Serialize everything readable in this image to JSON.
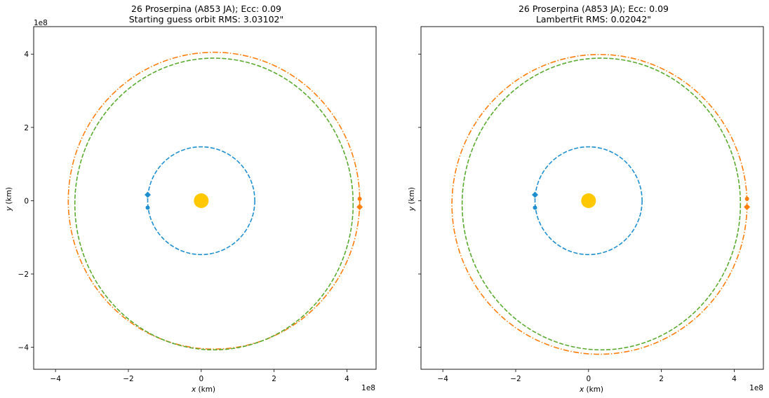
{
  "chart_data": [
    {
      "type": "scatter",
      "title_line1": "26 Proserpina (A853 JA); Ecc: 0.09",
      "title_line2": "Starting guess orbit RMS: 3.03102\"",
      "xlabel_var": "x",
      "xlabel_unit": " (km)",
      "ylabel_var": "y",
      "ylabel_unit": " (km)",
      "x_offset_text": "1e8",
      "y_offset_text": "1e8",
      "xlim": [
        -4.6,
        4.8
      ],
      "ylim": [
        -4.6,
        4.75
      ],
      "xticks": [
        -4,
        -2,
        0,
        2,
        4
      ],
      "xtick_labels": [
        "−4",
        "−2",
        "0",
        "2",
        "4"
      ],
      "yticks": [
        -4,
        -2,
        0,
        2,
        4
      ],
      "ytick_labels": [
        "−4",
        "−2",
        "0",
        "2",
        "4"
      ],
      "show_ytick_labels": true,
      "series": [
        {
          "color": "#1f8fd0",
          "style": "dashed",
          "kind": "ellipse",
          "cx": 0.0,
          "cy": 0.0,
          "rx": 1.47,
          "ry": 1.47
        },
        {
          "color": "#ff7f0e",
          "style": "dashdot",
          "kind": "ellipse",
          "cx": 0.35,
          "cy": 0.0,
          "rx": 4.0,
          "ry": 4.05
        },
        {
          "color": "#5aab2f",
          "style": "dashed",
          "kind": "ellipse",
          "cx": 0.35,
          "cy": -0.09,
          "rx": 3.82,
          "ry": 3.98
        }
      ],
      "sun": {
        "x": 0.0,
        "y": 0.0,
        "color": "#ffc800"
      },
      "markers": [
        {
          "shape": "diamond",
          "x": -1.47,
          "y": 0.16,
          "color": "#1f8fd0"
        },
        {
          "shape": "circle",
          "x": -1.47,
          "y": -0.19,
          "color": "#1f8fd0"
        },
        {
          "shape": "circle",
          "x": 4.35,
          "y": 0.05,
          "color": "#ff7f0e"
        },
        {
          "shape": "diamond",
          "x": 4.35,
          "y": -0.17,
          "color": "#ff7f0e"
        }
      ]
    },
    {
      "type": "scatter",
      "title_line1": "26 Proserpina (A853 JA); Ecc: 0.09",
      "title_line2": "LambertFit RMS: 0.02042\"",
      "xlabel_var": "x",
      "xlabel_unit": " (km)",
      "ylabel_var": "y",
      "ylabel_unit": " (km)",
      "x_offset_text": "1e8",
      "y_offset_text": "",
      "xlim": [
        -4.6,
        4.8
      ],
      "ylim": [
        -4.6,
        4.75
      ],
      "xticks": [
        -4,
        -2,
        0,
        2,
        4
      ],
      "xtick_labels": [
        "−4",
        "−2",
        "0",
        "2",
        "4"
      ],
      "yticks": [
        -4,
        -2,
        0,
        2,
        4
      ],
      "ytick_labels": [
        "−4",
        "−2",
        "0",
        "2",
        "4"
      ],
      "show_ytick_labels": false,
      "series": [
        {
          "color": "#1f8fd0",
          "style": "dashed",
          "kind": "ellipse",
          "cx": 0.0,
          "cy": 0.0,
          "rx": 1.47,
          "ry": 1.47
        },
        {
          "color": "#ff7f0e",
          "style": "dashdot",
          "kind": "ellipse",
          "cx": 0.3,
          "cy": -0.1,
          "rx": 4.05,
          "ry": 4.09
        },
        {
          "color": "#5aab2f",
          "style": "dashed",
          "kind": "ellipse",
          "cx": 0.35,
          "cy": -0.09,
          "rx": 3.82,
          "ry": 3.98
        }
      ],
      "sun": {
        "x": 0.0,
        "y": 0.0,
        "color": "#ffc800"
      },
      "markers": [
        {
          "shape": "diamond",
          "x": -1.47,
          "y": 0.16,
          "color": "#1f8fd0"
        },
        {
          "shape": "circle",
          "x": -1.47,
          "y": -0.19,
          "color": "#1f8fd0"
        },
        {
          "shape": "circle",
          "x": 4.35,
          "y": 0.05,
          "color": "#ff7f0e"
        },
        {
          "shape": "diamond",
          "x": 4.35,
          "y": -0.17,
          "color": "#ff7f0e"
        }
      ]
    }
  ]
}
